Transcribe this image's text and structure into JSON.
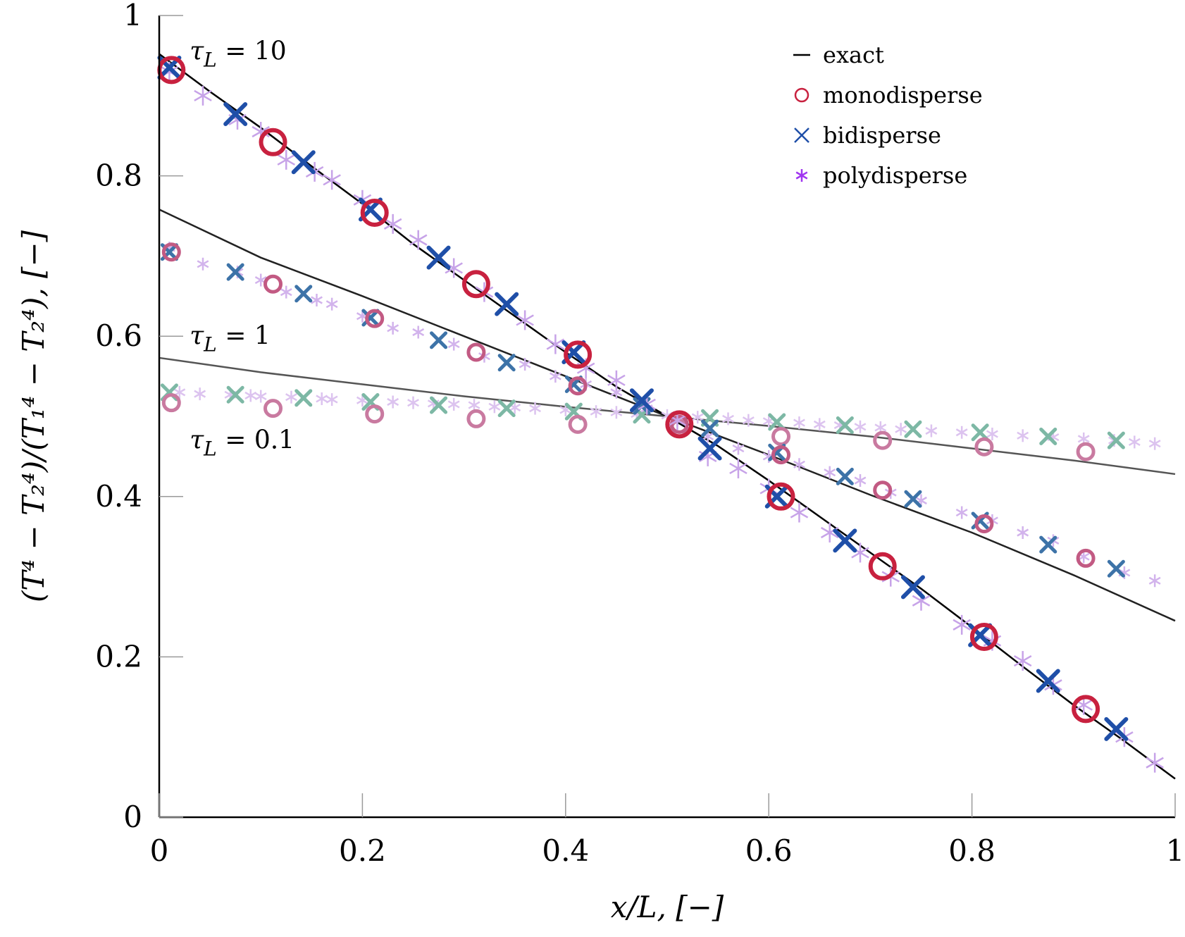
{
  "chart_data": {
    "type": "line",
    "title": "",
    "xlabel": "x/L, [−]",
    "ylabel": "(T⁴ − T₂⁴)/(T₁⁴ − T₂⁴), [−]",
    "xlim": [
      0,
      1
    ],
    "ylim": [
      0,
      1
    ],
    "xticks": [
      "0",
      "0.2",
      "0.4",
      "0.6",
      "0.8",
      "1"
    ],
    "yticks": [
      "0",
      "0.2",
      "0.4",
      "0.6",
      "0.8",
      "1"
    ],
    "grid": false,
    "legend_position": "top-right",
    "legend": [
      {
        "marker": "line",
        "label": "exact",
        "color": "#000000"
      },
      {
        "marker": "circle",
        "label": "monodisperse",
        "color": "#c8213f"
      },
      {
        "marker": "x",
        "label": "bidisperse",
        "color": "#1f4fa8"
      },
      {
        "marker": "asterisk",
        "label": "polydisperse",
        "color": "#a035f0"
      }
    ],
    "annotations": [
      {
        "text": "τ_L = 10",
        "x": 0.03,
        "y": 0.945
      },
      {
        "text": "τ_L = 1",
        "x": 0.03,
        "y": 0.59
      },
      {
        "text": "τ_L = 0.1",
        "x": 0.03,
        "y": 0.46
      }
    ],
    "groups": [
      {
        "tau": "10",
        "exact": {
          "x": [
            0,
            0.05,
            0.1,
            0.15,
            0.2,
            0.25,
            0.3,
            0.35,
            0.4,
            0.45,
            0.5,
            0.55,
            0.6,
            0.65,
            0.7,
            0.75,
            0.8,
            0.85,
            0.9,
            0.95,
            1.0
          ],
          "y": [
            0.952,
            0.905,
            0.86,
            0.812,
            0.765,
            0.715,
            0.67,
            0.625,
            0.58,
            0.537,
            0.5,
            0.463,
            0.42,
            0.375,
            0.33,
            0.285,
            0.237,
            0.188,
            0.14,
            0.095,
            0.048
          ],
          "color": "#000000"
        },
        "monodisperse": {
          "x": [
            0.012,
            0.112,
            0.212,
            0.312,
            0.412,
            0.512,
            0.612,
            0.712,
            0.812,
            0.912
          ],
          "y": [
            0.932,
            0.842,
            0.754,
            0.665,
            0.577,
            0.49,
            0.4,
            0.313,
            0.225,
            0.135
          ],
          "color": "#c8213f"
        },
        "bidisperse": {
          "x": [
            0.01,
            0.075,
            0.142,
            0.208,
            0.275,
            0.342,
            0.408,
            0.475,
            0.542,
            0.608,
            0.675,
            0.742,
            0.808,
            0.875,
            0.942
          ],
          "y": [
            0.935,
            0.877,
            0.817,
            0.758,
            0.698,
            0.64,
            0.58,
            0.52,
            0.46,
            0.4,
            0.345,
            0.287,
            0.227,
            0.17,
            0.11
          ],
          "color": "#1f4fa8"
        },
        "polydisperse": {
          "x": [
            0.01,
            0.043,
            0.077,
            0.1,
            0.125,
            0.153,
            0.17,
            0.2,
            0.23,
            0.255,
            0.29,
            0.32,
            0.36,
            0.39,
            0.42,
            0.45,
            0.48,
            0.51,
            0.54,
            0.57,
            0.6,
            0.63,
            0.66,
            0.69,
            0.72,
            0.75,
            0.79,
            0.82,
            0.85,
            0.88,
            0.91,
            0.95,
            0.98
          ],
          "y": [
            0.93,
            0.9,
            0.87,
            0.855,
            0.82,
            0.805,
            0.795,
            0.77,
            0.74,
            0.72,
            0.685,
            0.655,
            0.62,
            0.59,
            0.56,
            0.545,
            0.515,
            0.495,
            0.45,
            0.435,
            0.41,
            0.38,
            0.355,
            0.33,
            0.3,
            0.27,
            0.24,
            0.22,
            0.195,
            0.165,
            0.14,
            0.1,
            0.068
          ],
          "color": "#c7a3e8"
        }
      },
      {
        "tau": "1",
        "exact": {
          "x": [
            0,
            0.1,
            0.2,
            0.3,
            0.4,
            0.5,
            0.6,
            0.7,
            0.8,
            0.9,
            1.0
          ],
          "y": [
            0.758,
            0.698,
            0.65,
            0.6,
            0.55,
            0.5,
            0.452,
            0.402,
            0.355,
            0.302,
            0.245
          ],
          "color": "#222222"
        },
        "monodisperse": {
          "x": [
            0.012,
            0.112,
            0.212,
            0.312,
            0.412,
            0.512,
            0.612,
            0.712,
            0.812,
            0.912
          ],
          "y": [
            0.705,
            0.665,
            0.622,
            0.58,
            0.538,
            0.49,
            0.452,
            0.408,
            0.366,
            0.323
          ],
          "color": "#c25a83"
        },
        "bidisperse": {
          "x": [
            0.01,
            0.075,
            0.142,
            0.208,
            0.275,
            0.342,
            0.408,
            0.475,
            0.542,
            0.608,
            0.675,
            0.742,
            0.808,
            0.875,
            0.942
          ],
          "y": [
            0.705,
            0.68,
            0.653,
            0.623,
            0.595,
            0.567,
            0.54,
            0.513,
            0.485,
            0.455,
            0.425,
            0.397,
            0.37,
            0.34,
            0.31
          ],
          "color": "#3d73a8"
        },
        "polydisperse": {
          "x": [
            0.01,
            0.043,
            0.077,
            0.1,
            0.125,
            0.155,
            0.17,
            0.2,
            0.23,
            0.255,
            0.29,
            0.32,
            0.36,
            0.39,
            0.42,
            0.45,
            0.48,
            0.51,
            0.54,
            0.57,
            0.6,
            0.63,
            0.66,
            0.69,
            0.72,
            0.75,
            0.79,
            0.82,
            0.85,
            0.88,
            0.91,
            0.95,
            0.98
          ],
          "y": [
            0.71,
            0.69,
            0.68,
            0.67,
            0.655,
            0.645,
            0.64,
            0.625,
            0.61,
            0.605,
            0.59,
            0.575,
            0.565,
            0.55,
            0.54,
            0.53,
            0.51,
            0.495,
            0.475,
            0.46,
            0.45,
            0.44,
            0.43,
            0.42,
            0.405,
            0.395,
            0.38,
            0.37,
            0.355,
            0.345,
            0.325,
            0.305,
            0.295
          ],
          "color": "#d2b3ec"
        }
      },
      {
        "tau": "0.1",
        "exact": {
          "x": [
            0,
            0.1,
            0.2,
            0.3,
            0.4,
            0.5,
            0.6,
            0.7,
            0.8,
            0.9,
            1.0
          ],
          "y": [
            0.573,
            0.555,
            0.54,
            0.525,
            0.512,
            0.5,
            0.488,
            0.475,
            0.46,
            0.445,
            0.428
          ],
          "color": "#555555"
        },
        "monodisperse": {
          "x": [
            0.012,
            0.112,
            0.212,
            0.312,
            0.412,
            0.512,
            0.612,
            0.712,
            0.812,
            0.912
          ],
          "y": [
            0.517,
            0.51,
            0.503,
            0.497,
            0.49,
            0.485,
            0.475,
            0.47,
            0.462,
            0.456
          ],
          "color": "#c97aa0"
        },
        "bidisperse": {
          "x": [
            0.01,
            0.075,
            0.142,
            0.208,
            0.275,
            0.342,
            0.408,
            0.475,
            0.542,
            0.608,
            0.675,
            0.742,
            0.808,
            0.875,
            0.942
          ],
          "y": [
            0.53,
            0.527,
            0.523,
            0.518,
            0.514,
            0.51,
            0.506,
            0.502,
            0.498,
            0.493,
            0.489,
            0.484,
            0.48,
            0.475,
            0.47
          ],
          "color": "#7db8a5"
        },
        "polydisperse": {
          "x": [
            0.02,
            0.04,
            0.07,
            0.09,
            0.1,
            0.13,
            0.16,
            0.17,
            0.2,
            0.23,
            0.25,
            0.27,
            0.29,
            0.31,
            0.33,
            0.35,
            0.37,
            0.4,
            0.43,
            0.45,
            0.47,
            0.5,
            0.53,
            0.56,
            0.58,
            0.6,
            0.63,
            0.65,
            0.67,
            0.69,
            0.71,
            0.73,
            0.76,
            0.79,
            0.82,
            0.85,
            0.88,
            0.91,
            0.94,
            0.96,
            0.98
          ],
          "y": [
            0.53,
            0.528,
            0.527,
            0.526,
            0.525,
            0.524,
            0.522,
            0.521,
            0.52,
            0.518,
            0.517,
            0.516,
            0.515,
            0.514,
            0.512,
            0.511,
            0.51,
            0.508,
            0.506,
            0.505,
            0.503,
            0.501,
            0.499,
            0.497,
            0.495,
            0.494,
            0.492,
            0.49,
            0.489,
            0.487,
            0.486,
            0.484,
            0.482,
            0.48,
            0.478,
            0.476,
            0.474,
            0.472,
            0.47,
            0.468,
            0.466
          ],
          "color": "#dcc3ef"
        }
      }
    ]
  }
}
